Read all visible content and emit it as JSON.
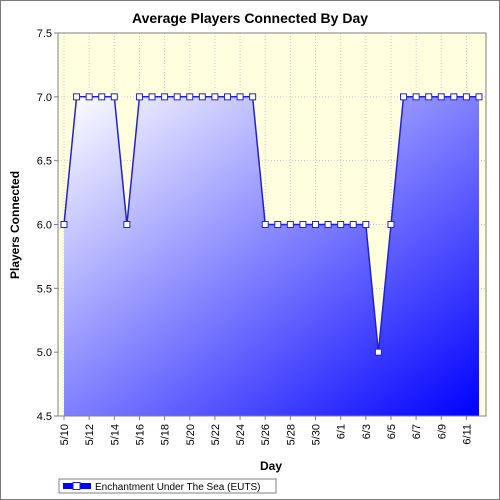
{
  "chart_data": {
    "type": "area",
    "title": "Average Players Connected By Day",
    "xlabel": "Day",
    "ylabel": "Players Connected",
    "ylim": [
      4.5,
      7.5
    ],
    "yticks": [
      "4.5",
      "5.0",
      "5.5",
      "6.0",
      "6.5",
      "7.0",
      "7.5"
    ],
    "xtick_labels": [
      "5/10",
      "5/12",
      "5/14",
      "5/16",
      "5/18",
      "5/20",
      "5/22",
      "5/24",
      "5/26",
      "5/28",
      "5/30",
      "6/1",
      "6/3",
      "6/5",
      "6/7",
      "6/9",
      "6/11"
    ],
    "grid": true,
    "legend_position": "bottom-left",
    "colors": {
      "plot_background": "#ffffe0",
      "fill_top": "#ffffff",
      "fill_bottom": "#0000ff",
      "line": "#2222cc",
      "marker_fill": "#ffffff"
    },
    "series": [
      {
        "name": "Enchantment Under The Sea (EUTS)",
        "x": [
          "5/10",
          "5/11",
          "5/12",
          "5/13",
          "5/14",
          "5/15",
          "5/16",
          "5/17",
          "5/18",
          "5/19",
          "5/20",
          "5/21",
          "5/22",
          "5/23",
          "5/24",
          "5/25",
          "5/26",
          "5/27",
          "5/28",
          "5/29",
          "5/30",
          "5/31",
          "6/1",
          "6/2",
          "6/3",
          "6/4",
          "6/5",
          "6/6",
          "6/7",
          "6/8",
          "6/9",
          "6/10",
          "6/11",
          "6/12"
        ],
        "values": [
          6.0,
          7.0,
          7.0,
          7.0,
          7.0,
          6.0,
          7.0,
          7.0,
          7.0,
          7.0,
          7.0,
          7.0,
          7.0,
          7.0,
          7.0,
          7.0,
          6.0,
          6.0,
          6.0,
          6.0,
          6.0,
          6.0,
          6.0,
          6.0,
          6.0,
          5.0,
          6.0,
          7.0,
          7.0,
          7.0,
          7.0,
          7.0,
          7.0,
          7.0
        ]
      }
    ]
  }
}
